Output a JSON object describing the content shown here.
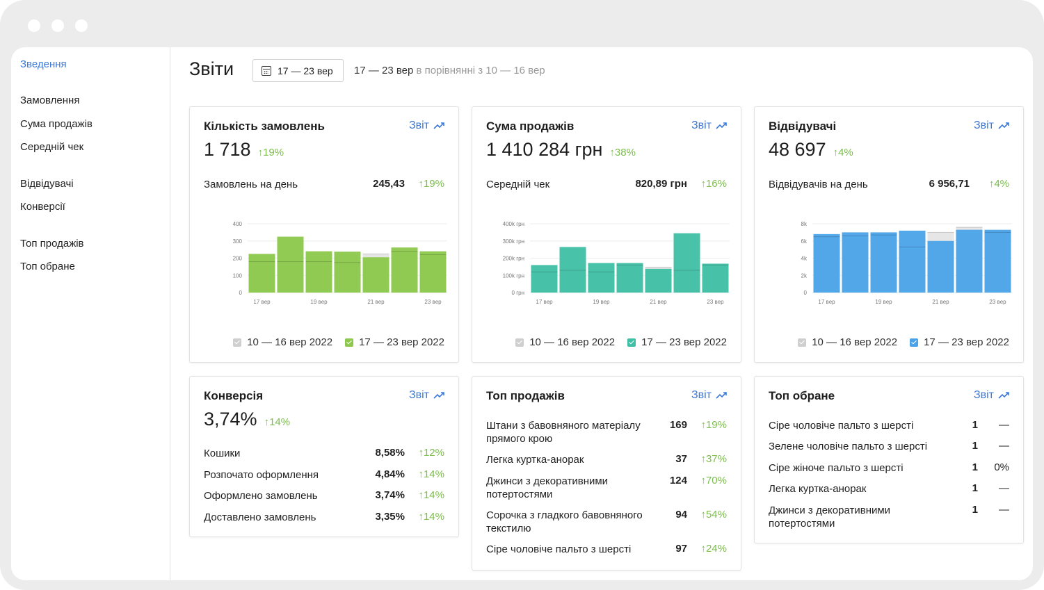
{
  "sidebar": {
    "items": [
      {
        "label": "Зведення",
        "active": true
      },
      {
        "label": "Замовлення"
      },
      {
        "label": "Сума продажів"
      },
      {
        "label": "Середній чек"
      },
      {
        "label": "Відвідувачі"
      },
      {
        "label": "Конверсії"
      },
      {
        "label": "Топ продажів"
      },
      {
        "label": "Топ обране"
      }
    ]
  },
  "header": {
    "title": "Звіти",
    "date_button": "17 — 23 вер",
    "compare_current": "17 — 23 вер",
    "compare_text": "в порівнянні з 10 — 16 вер"
  },
  "report_label": "Звіт",
  "icons": {
    "calendar": "calendar-icon",
    "trend": "trend-up-icon",
    "check": "checkbox-checked-icon"
  },
  "colors": {
    "accent": "#3b78d8",
    "positive": "#7cbd4c",
    "green": "#8cc84b",
    "teal": "#3fbfa5",
    "blue": "#4aa3e8",
    "prev": "#cfcfcf"
  },
  "legend": {
    "prev": "10 — 16 вер 2022",
    "curr": "17 — 23 вер 2022"
  },
  "cards": {
    "orders": {
      "title": "Кількість замовлень",
      "value": "1 718",
      "change": "↑19%",
      "sub_label": "Замовлень на день",
      "sub_value": "245,43",
      "sub_change": "↑19%"
    },
    "sales": {
      "title": "Сума продажів",
      "value": "1 410 284 грн",
      "change": "↑38%",
      "sub_label": "Середній чек",
      "sub_value": "820,89 грн",
      "sub_change": "↑16%"
    },
    "visitors": {
      "title": "Відвідувачі",
      "value": "48 697",
      "change": "↑4%",
      "sub_label": "Відвідувачів на день",
      "sub_value": "6 956,71",
      "sub_change": "↑4%"
    },
    "conversion": {
      "title": "Конверсія",
      "value": "3,74%",
      "change": "↑14%",
      "rows": [
        {
          "label": "Кошики",
          "value": "8,58%",
          "change": "↑12%"
        },
        {
          "label": "Розпочато оформлення",
          "value": "4,84%",
          "change": "↑14%"
        },
        {
          "label": "Оформлено замовлень",
          "value": "3,74%",
          "change": "↑14%"
        },
        {
          "label": "Доставлено замовлень",
          "value": "3,35%",
          "change": "↑14%"
        }
      ]
    },
    "top_sales": {
      "title": "Топ продажів",
      "rows": [
        {
          "label": "Штани з бавовняного матеріалу прямого крою",
          "value": "169",
          "change": "↑19%"
        },
        {
          "label": "Легка куртка-анорак",
          "value": "37",
          "change": "↑37%"
        },
        {
          "label": "Джинси з декоративними потертостями",
          "value": "124",
          "change": "↑70%"
        },
        {
          "label": "Сорочка з гладкого бавовняного текстилю",
          "value": "94",
          "change": "↑54%"
        },
        {
          "label": "Сіре чоловіче пальто з шерсті",
          "value": "97",
          "change": "↑24%"
        }
      ]
    },
    "top_favorites": {
      "title": "Топ обране",
      "rows": [
        {
          "label": "Сіре чоловіче пальто з шерсті",
          "value": "1",
          "change": "—"
        },
        {
          "label": "Зелене чоловіче пальто з шерсті",
          "value": "1",
          "change": "—"
        },
        {
          "label": "Сіре жіноче пальто з шерсті",
          "value": "1",
          "change": "0%"
        },
        {
          "label": "Легка куртка-анорак",
          "value": "1",
          "change": "—"
        },
        {
          "label": "Джинси з декоративними потертостями",
          "value": "1",
          "change": "—"
        }
      ]
    }
  },
  "chart_data": [
    {
      "type": "bar",
      "categories": [
        "17 вер",
        "18 вер",
        "19 вер",
        "20 вер",
        "21 вер",
        "22 вер",
        "23 вер"
      ],
      "tick_labels": [
        "17 вер",
        "19 вер",
        "21 вер",
        "23 вер"
      ],
      "y_ticks": [
        "0",
        "100",
        "200",
        "300",
        "400"
      ],
      "ylim": [
        0,
        400
      ],
      "series": [
        {
          "name": "10 — 16 вер 2022",
          "values": [
            180,
            180,
            180,
            175,
            225,
            240,
            220
          ]
        },
        {
          "name": "17 — 23 вер 2022",
          "values": [
            225,
            325,
            240,
            238,
            205,
            262,
            240
          ]
        }
      ]
    },
    {
      "type": "bar",
      "categories": [
        "17 вер",
        "18 вер",
        "19 вер",
        "20 вер",
        "21 вер",
        "22 вер",
        "23 вер"
      ],
      "tick_labels": [
        "17 вер",
        "19 вер",
        "21 вер",
        "23 вер"
      ],
      "y_ticks": [
        "0 грн",
        "100k грн",
        "200k грн",
        "300k грн",
        "400k грн"
      ],
      "ylim": [
        0,
        400000
      ],
      "series": [
        {
          "name": "10 — 16 вер 2022",
          "values": [
            120000,
            130000,
            120000,
            160000,
            148000,
            130000,
            160000
          ]
        },
        {
          "name": "17 — 23 вер 2022",
          "values": [
            160000,
            265000,
            172000,
            172000,
            138000,
            345000,
            168000
          ]
        }
      ]
    },
    {
      "type": "bar",
      "categories": [
        "17 вер",
        "18 вер",
        "19 вер",
        "20 вер",
        "21 вер",
        "22 вер",
        "23 вер"
      ],
      "tick_labels": [
        "17 вер",
        "19 вер",
        "21 вер",
        "23 вер"
      ],
      "y_ticks": [
        "0",
        "2k",
        "4k",
        "6k",
        "8k"
      ],
      "ylim": [
        0,
        8000
      ],
      "series": [
        {
          "name": "10 — 16 вер 2022",
          "values": [
            6500,
            6600,
            6700,
            5300,
            7000,
            7600,
            7000
          ]
        },
        {
          "name": "17 — 23 вер 2022",
          "values": [
            6800,
            7000,
            7000,
            7200,
            6000,
            7300,
            7300
          ]
        }
      ]
    }
  ]
}
